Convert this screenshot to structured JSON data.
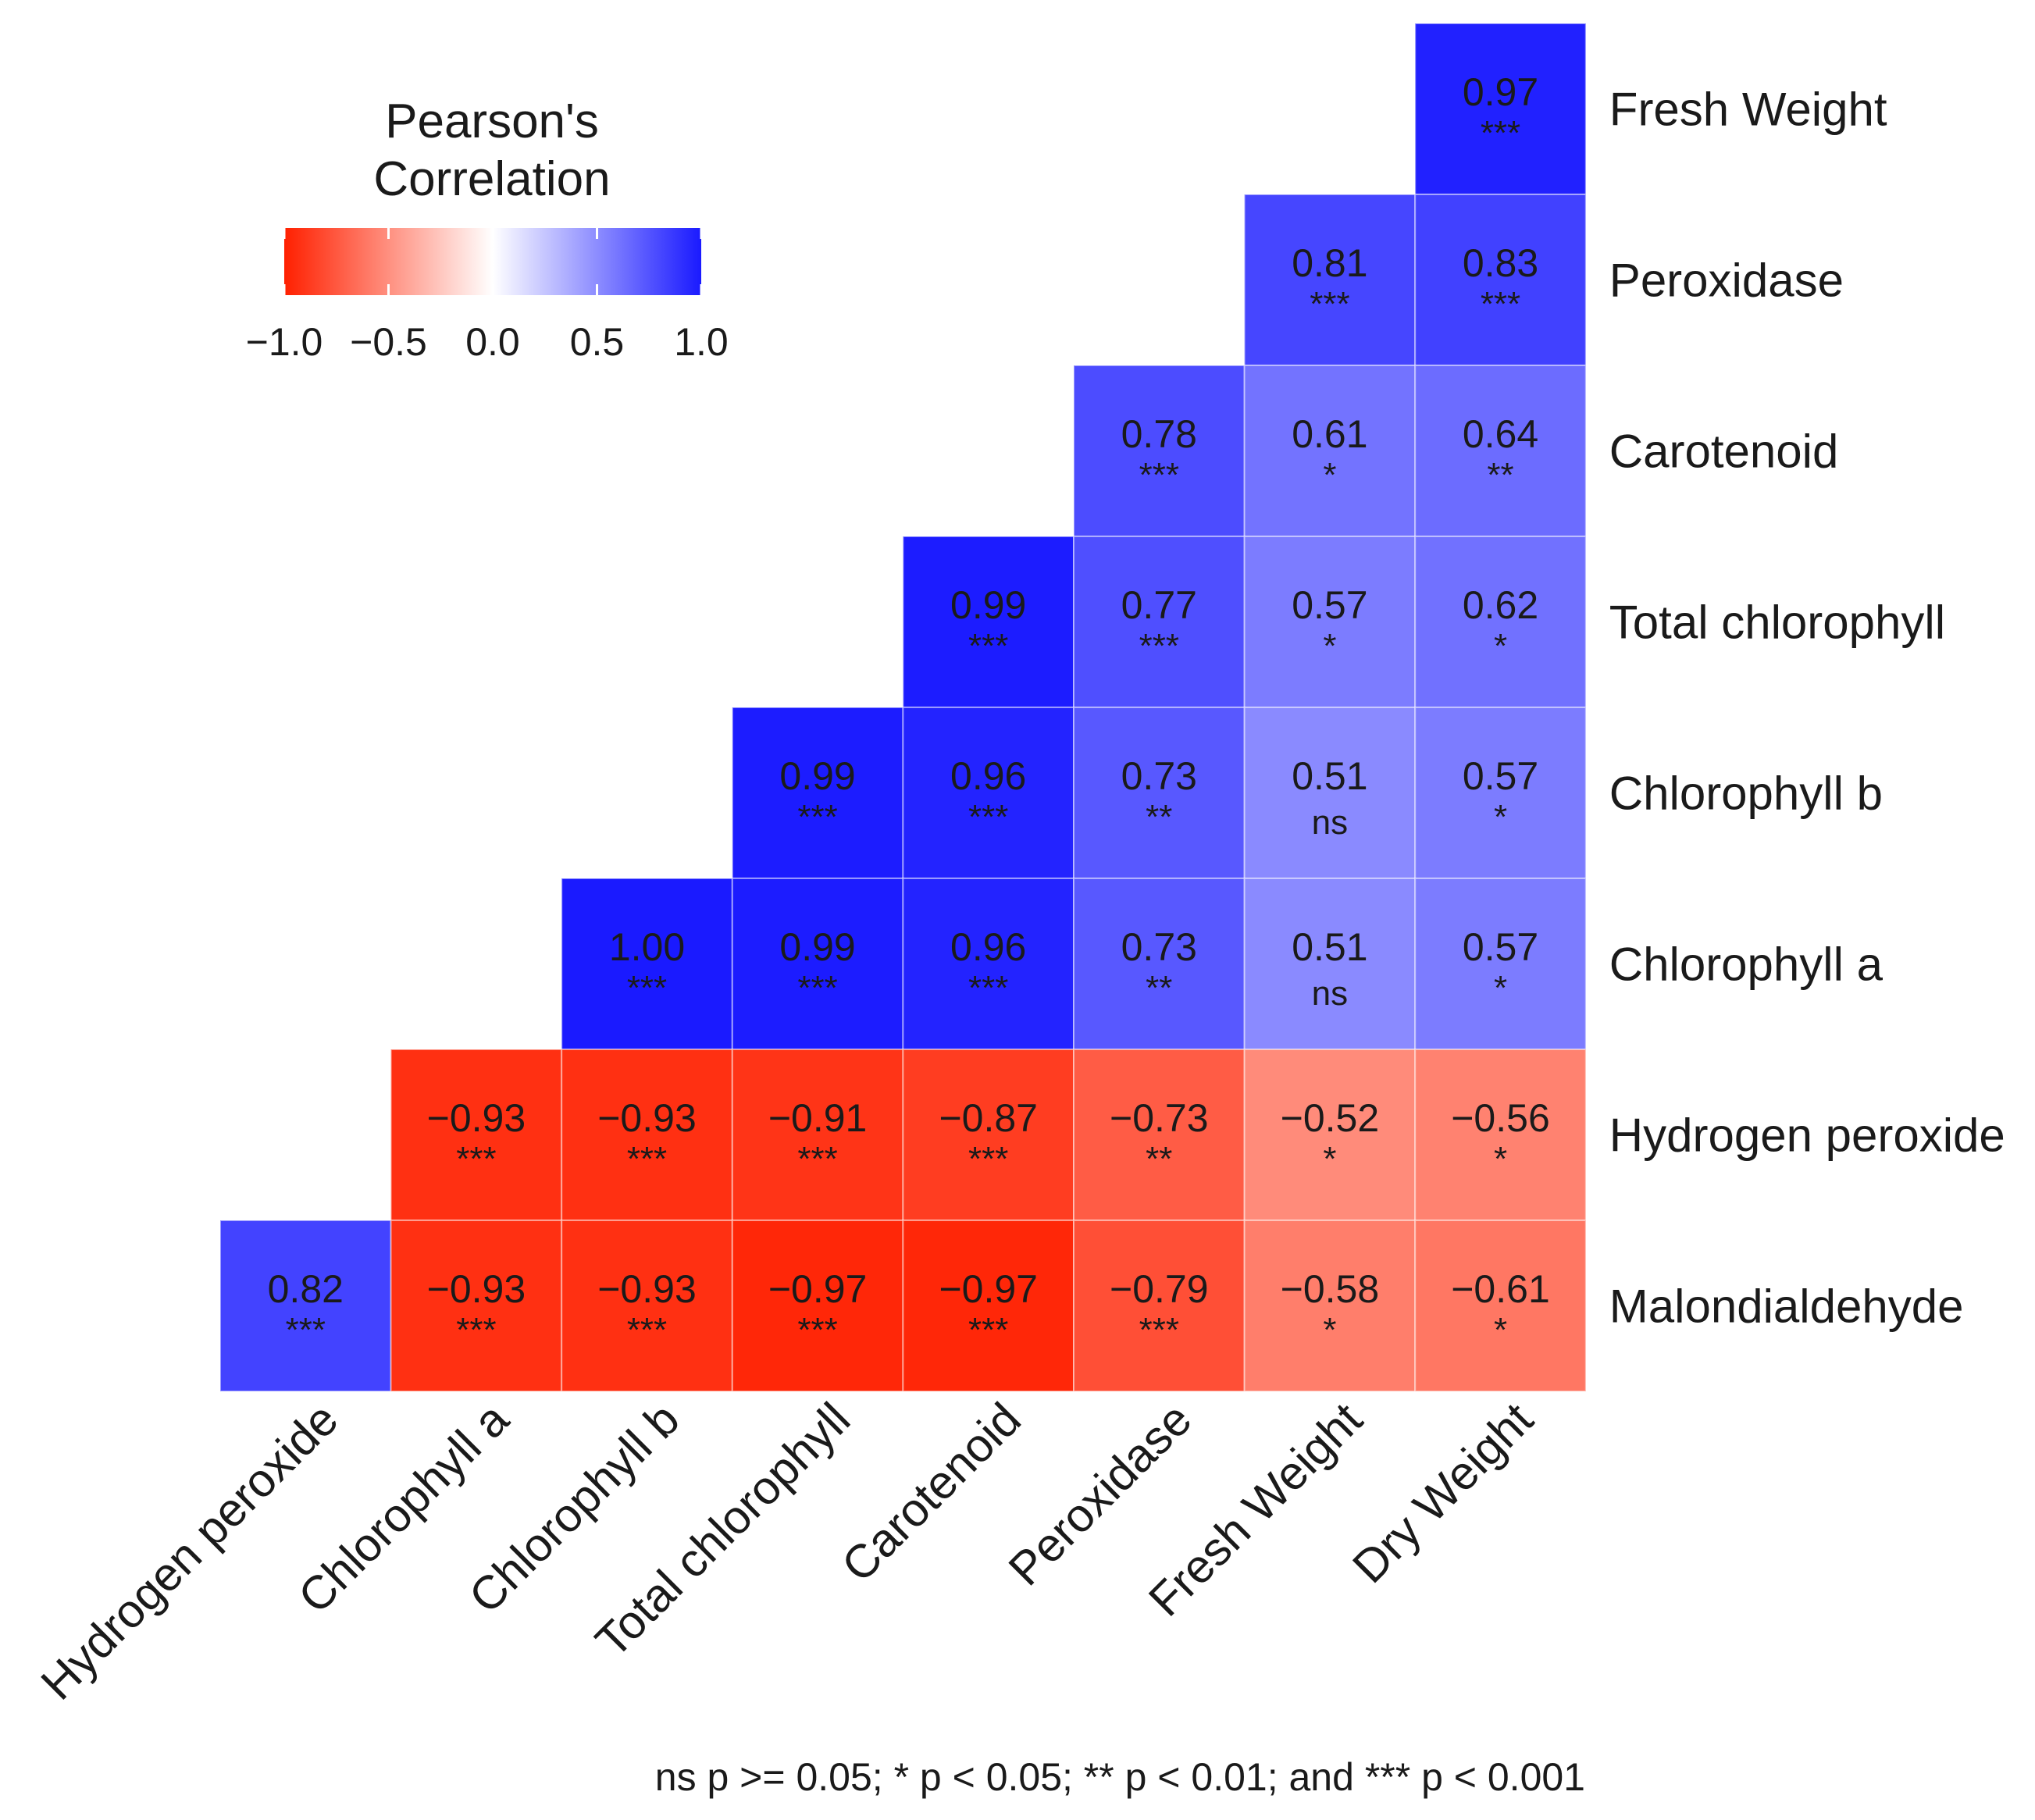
{
  "chart_data": {
    "type": "heatmap",
    "title": "",
    "legend": {
      "title_line1": "Pearson's",
      "title_line2": "Correlation",
      "ticks": [
        "−1.0",
        "−0.5",
        "0.0",
        "0.5",
        "1.0"
      ],
      "tick_values": [
        -1.0,
        -0.5,
        0.0,
        0.5,
        1.0
      ],
      "range": [
        -1,
        1
      ],
      "colors": {
        "low": "#ff2000",
        "mid": "#ffffff",
        "high": "#1a1aff"
      },
      "placement": "top-left"
    },
    "columns": [
      "Hydrogen peroxide",
      "Chlorophyll a",
      "Chlorophyll b",
      "Total chlorophyll",
      "Carotenoid",
      "Peroxidase",
      "Fresh Weight",
      "Dry Weight"
    ],
    "rows": [
      "Fresh Weight",
      "Peroxidase",
      "Carotenoid",
      "Total chlorophyll",
      "Chlorophyll b",
      "Chlorophyll a",
      "Hydrogen peroxide",
      "Malondialdehyde"
    ],
    "cells": [
      {
        "row": 0,
        "col": 7,
        "value": 0.97,
        "label": "0.97",
        "sig": "***"
      },
      {
        "row": 1,
        "col": 6,
        "value": 0.81,
        "label": "0.81",
        "sig": "***"
      },
      {
        "row": 1,
        "col": 7,
        "value": 0.83,
        "label": "0.83",
        "sig": "***"
      },
      {
        "row": 2,
        "col": 5,
        "value": 0.78,
        "label": "0.78",
        "sig": "***"
      },
      {
        "row": 2,
        "col": 6,
        "value": 0.61,
        "label": "0.61",
        "sig": "*"
      },
      {
        "row": 2,
        "col": 7,
        "value": 0.64,
        "label": "0.64",
        "sig": "**"
      },
      {
        "row": 3,
        "col": 4,
        "value": 0.99,
        "label": "0.99",
        "sig": "***"
      },
      {
        "row": 3,
        "col": 5,
        "value": 0.77,
        "label": "0.77",
        "sig": "***"
      },
      {
        "row": 3,
        "col": 6,
        "value": 0.57,
        "label": "0.57",
        "sig": "*"
      },
      {
        "row": 3,
        "col": 7,
        "value": 0.62,
        "label": "0.62",
        "sig": "*"
      },
      {
        "row": 4,
        "col": 3,
        "value": 0.99,
        "label": "0.99",
        "sig": "***"
      },
      {
        "row": 4,
        "col": 4,
        "value": 0.96,
        "label": "0.96",
        "sig": "***"
      },
      {
        "row": 4,
        "col": 5,
        "value": 0.73,
        "label": "0.73",
        "sig": "**"
      },
      {
        "row": 4,
        "col": 6,
        "value": 0.51,
        "label": "0.51",
        "sig": "ns"
      },
      {
        "row": 4,
        "col": 7,
        "value": 0.57,
        "label": "0.57",
        "sig": "*"
      },
      {
        "row": 5,
        "col": 2,
        "value": 1.0,
        "label": "1.00",
        "sig": "***"
      },
      {
        "row": 5,
        "col": 3,
        "value": 0.99,
        "label": "0.99",
        "sig": "***"
      },
      {
        "row": 5,
        "col": 4,
        "value": 0.96,
        "label": "0.96",
        "sig": "***"
      },
      {
        "row": 5,
        "col": 5,
        "value": 0.73,
        "label": "0.73",
        "sig": "**"
      },
      {
        "row": 5,
        "col": 6,
        "value": 0.51,
        "label": "0.51",
        "sig": "ns"
      },
      {
        "row": 5,
        "col": 7,
        "value": 0.57,
        "label": "0.57",
        "sig": "*"
      },
      {
        "row": 6,
        "col": 1,
        "value": -0.93,
        "label": "−0.93",
        "sig": "***"
      },
      {
        "row": 6,
        "col": 2,
        "value": -0.93,
        "label": "−0.93",
        "sig": "***"
      },
      {
        "row": 6,
        "col": 3,
        "value": -0.91,
        "label": "−0.91",
        "sig": "***"
      },
      {
        "row": 6,
        "col": 4,
        "value": -0.87,
        "label": "−0.87",
        "sig": "***"
      },
      {
        "row": 6,
        "col": 5,
        "value": -0.73,
        "label": "−0.73",
        "sig": "**"
      },
      {
        "row": 6,
        "col": 6,
        "value": -0.52,
        "label": "−0.52",
        "sig": "*"
      },
      {
        "row": 6,
        "col": 7,
        "value": -0.56,
        "label": "−0.56",
        "sig": "*"
      },
      {
        "row": 7,
        "col": 0,
        "value": 0.82,
        "label": "0.82",
        "sig": "***"
      },
      {
        "row": 7,
        "col": 1,
        "value": -0.93,
        "label": "−0.93",
        "sig": "***"
      },
      {
        "row": 7,
        "col": 2,
        "value": -0.93,
        "label": "−0.93",
        "sig": "***"
      },
      {
        "row": 7,
        "col": 3,
        "value": -0.97,
        "label": "−0.97",
        "sig": "***"
      },
      {
        "row": 7,
        "col": 4,
        "value": -0.97,
        "label": "−0.97",
        "sig": "***"
      },
      {
        "row": 7,
        "col": 5,
        "value": -0.79,
        "label": "−0.79",
        "sig": "***"
      },
      {
        "row": 7,
        "col": 6,
        "value": -0.58,
        "label": "−0.58",
        "sig": "*"
      },
      {
        "row": 7,
        "col": 7,
        "value": -0.61,
        "label": "−0.61",
        "sig": "*"
      }
    ],
    "footnote": "ns p >= 0.05; * p < 0.05; ** p < 0.01; and *** p < 0.001"
  }
}
